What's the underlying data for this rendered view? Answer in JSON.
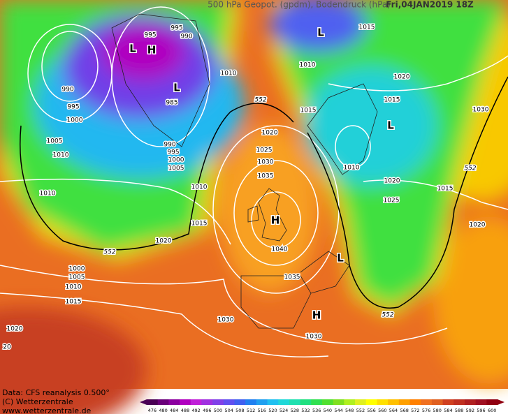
{
  "header": {
    "title": "500 hPa Geopot. (gpdm), Bodendruck (hPa)",
    "date": "Fri,04JAN2019 18Z"
  },
  "footer": {
    "source": "Data: CFS reanalysis 0.500°",
    "copyright": "(C) Wetterzentrale",
    "url": "www.wetterzentrale.de"
  },
  "colorbar": {
    "ticks": [
      476,
      480,
      484,
      488,
      492,
      496,
      500,
      504,
      508,
      512,
      516,
      520,
      524,
      528,
      532,
      536,
      540,
      544,
      548,
      552,
      556,
      560,
      564,
      568,
      572,
      576,
      580,
      584,
      588,
      592,
      596,
      600
    ],
    "colors": [
      "#4b0055",
      "#6a007a",
      "#8c00a0",
      "#b000c0",
      "#c020d8",
      "#a030e0",
      "#8040e8",
      "#6050f0",
      "#4060f0",
      "#2080f0",
      "#20a0f0",
      "#20c0f0",
      "#20d8d8",
      "#20e0b0",
      "#20e080",
      "#30e050",
      "#50e030",
      "#80e020",
      "#b0f020",
      "#e0f020",
      "#ffff00",
      "#ffe000",
      "#ffc000",
      "#ffa000",
      "#ff8000",
      "#f07020",
      "#e06020",
      "#d04020",
      "#c03020",
      "#b02020",
      "#a01020",
      "#900010"
    ]
  },
  "map": {
    "isobar_labels": [
      995,
      995,
      990,
      990,
      995,
      1000,
      1005,
      1010,
      1010,
      985,
      990,
      995,
      1000,
      1005,
      1010,
      1010,
      1015,
      1020,
      1015,
      1030,
      1015,
      1020,
      1025,
      1030,
      1035,
      1010,
      1020,
      1015,
      1025,
      1010,
      1015,
      1020,
      1040,
      1035,
      1020,
      1000,
      1005,
      1010,
      1015,
      1030,
      1030,
      1020,
      20
    ],
    "contour_labels": [
      552,
      552,
      552,
      552
    ],
    "pressure_centers": [
      "L",
      "H",
      "L",
      "L",
      "L",
      "H",
      "L",
      "H"
    ]
  }
}
